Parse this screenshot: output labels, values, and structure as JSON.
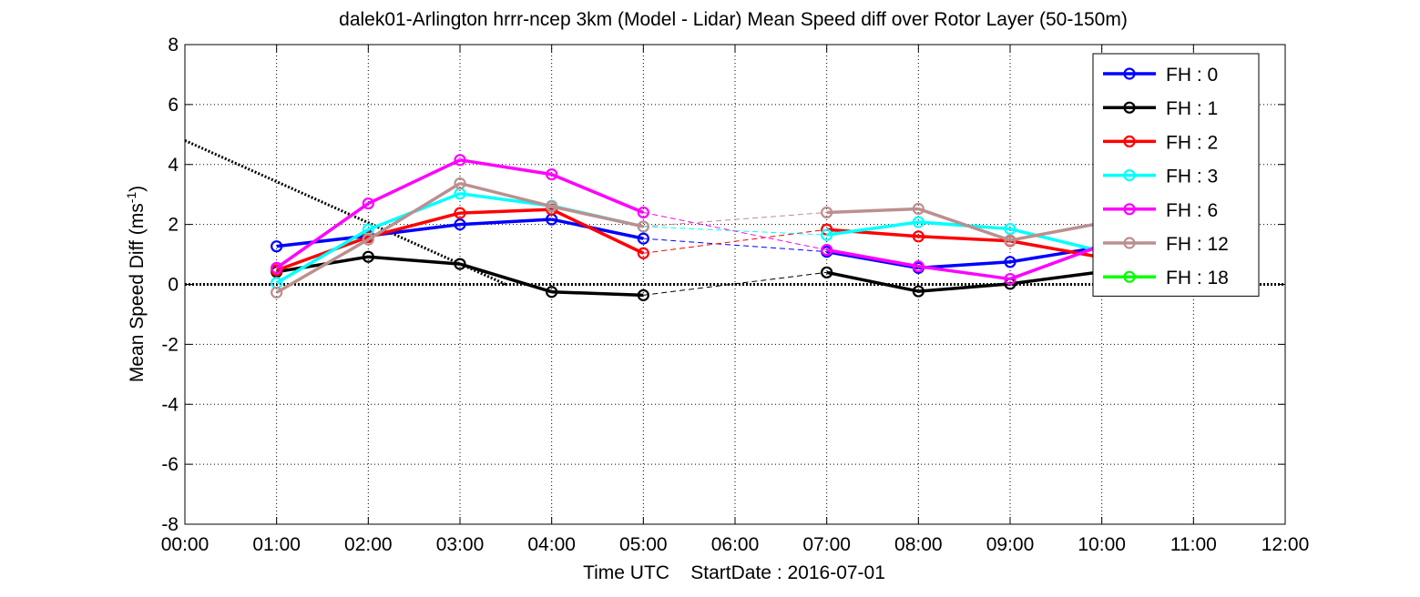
{
  "chart_data": {
    "type": "line",
    "title": "dalek01-Arlington hrrr-ncep 3km (Model - Lidar) Mean Speed diff over Rotor Layer (50-150m)",
    "xlabel": "Time UTC    StartDate : 2016-07-01",
    "ylabel": "Mean Speed Diff (ms",
    "ylabel_sup": "-1",
    "ylabel_end": ")",
    "xlim": [
      0,
      12
    ],
    "ylim": [
      -8,
      8
    ],
    "xticks": [
      0,
      1,
      2,
      3,
      4,
      5,
      6,
      7,
      8,
      9,
      10,
      11,
      12
    ],
    "xtick_labels": [
      "00:00",
      "01:00",
      "02:00",
      "03:00",
      "04:00",
      "05:00",
      "06:00",
      "07:00",
      "08:00",
      "09:00",
      "10:00",
      "11:00",
      "12:00"
    ],
    "yticks": [
      -8,
      -6,
      -4,
      -2,
      0,
      2,
      4,
      6,
      8
    ],
    "ytick_labels": [
      "-8",
      "-6",
      "-4",
      "-2",
      "0",
      "2",
      "4",
      "6",
      "8"
    ],
    "grid": true,
    "legend_position": "top-right",
    "series": [
      {
        "name": "FH : 0",
        "color": "#0000ff",
        "x": [
          1,
          2,
          3,
          4,
          5,
          7,
          8,
          9,
          10
        ],
        "y": [
          1.27,
          1.62,
          2.0,
          2.17,
          1.53,
          1.09,
          0.55,
          0.75,
          1.25
        ]
      },
      {
        "name": "FH : 1",
        "color": "#000000",
        "x": [
          1,
          2,
          3,
          4,
          5,
          7,
          8,
          9,
          10
        ],
        "y": [
          0.42,
          0.92,
          0.68,
          -0.25,
          -0.36,
          0.4,
          -0.23,
          0.02,
          0.42
        ]
      },
      {
        "name": "FH : 2",
        "color": "#ff0000",
        "x": [
          1,
          2,
          3,
          4,
          5,
          7,
          8,
          9,
          10
        ],
        "y": [
          0.47,
          1.58,
          2.38,
          2.5,
          1.04,
          1.83,
          1.6,
          1.45,
          0.9
        ]
      },
      {
        "name": "FH : 3",
        "color": "#00ffff",
        "x": [
          1,
          2,
          3,
          4,
          5,
          7,
          8,
          9,
          10
        ],
        "y": [
          0.05,
          1.83,
          3.03,
          2.62,
          1.93,
          1.65,
          2.08,
          1.85,
          1.1
        ]
      },
      {
        "name": "FH : 6",
        "color": "#ff00ff",
        "x": [
          1,
          2,
          3,
          4,
          5,
          7,
          8,
          9,
          10
        ],
        "y": [
          0.55,
          2.7,
          4.15,
          3.67,
          2.4,
          1.15,
          0.6,
          0.18,
          1.3
        ]
      },
      {
        "name": "FH : 12",
        "color": "#bc8f8f",
        "x": [
          1,
          2,
          3,
          4,
          5,
          7,
          8,
          9,
          10
        ],
        "y": [
          -0.27,
          1.5,
          3.37,
          2.6,
          1.93,
          2.4,
          2.52,
          1.47,
          2.05
        ]
      },
      {
        "name": "FH : 18",
        "color": "#00ff00",
        "x": [],
        "y": []
      }
    ],
    "reference_line": {
      "x": [
        0,
        3.5
      ],
      "y": [
        4.8,
        0
      ]
    }
  }
}
